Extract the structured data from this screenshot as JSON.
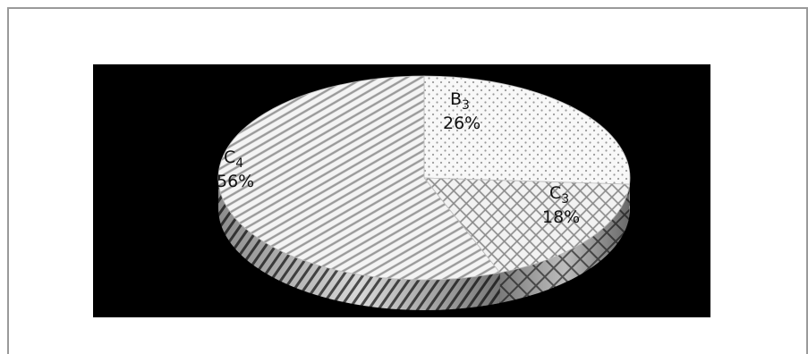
{
  "chart_data": {
    "type": "pie",
    "title": "",
    "slices": [
      {
        "id": "b3",
        "name": "B",
        "sub": "3",
        "value": 26,
        "pct_label": "26%"
      },
      {
        "id": "c3",
        "name": "C",
        "sub": "3",
        "value": 18,
        "pct_label": "18%"
      },
      {
        "id": "c4",
        "name": "C",
        "sub": "4",
        "value": 56,
        "pct_label": "56%"
      }
    ],
    "style": "3d-tilted",
    "background_color": "#000000"
  }
}
